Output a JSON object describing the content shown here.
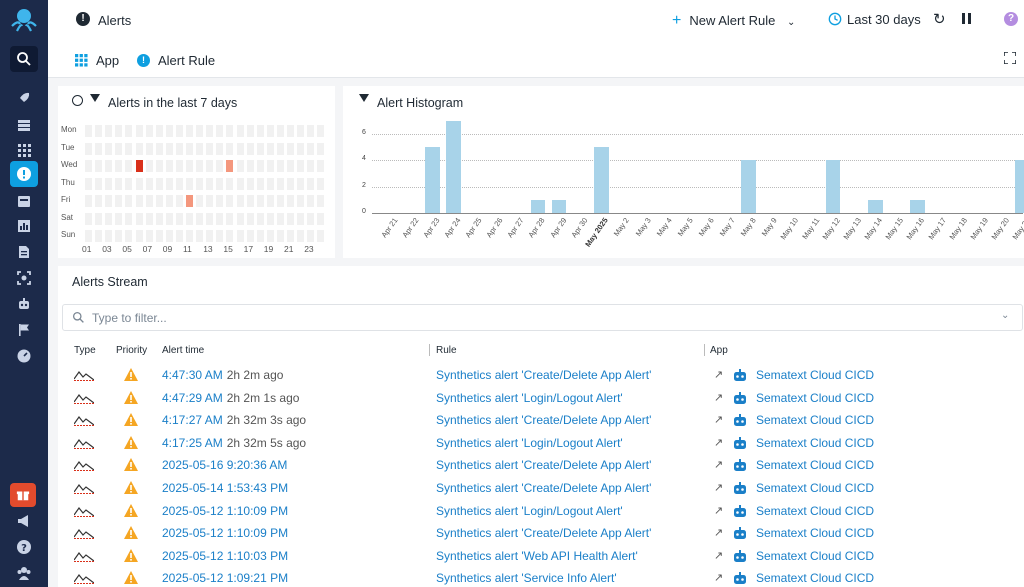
{
  "header": {
    "page_title": "Alerts",
    "new_alert_rule": "New Alert Rule",
    "time_range": "Last 30 days"
  },
  "filters_bar": {
    "app_label": "App",
    "rule_label": "Alert Rule"
  },
  "heatmap": {
    "title": "Alerts in the last 7 days",
    "days": [
      "Mon",
      "Tue",
      "Wed",
      "Thu",
      "Fri",
      "Sat",
      "Sun"
    ],
    "hours": [
      "01",
      "03",
      "05",
      "07",
      "09",
      "11",
      "13",
      "15",
      "17",
      "19",
      "21",
      "23"
    ],
    "hot_cells": [
      {
        "day": "Wed",
        "hour": 5,
        "level": "high"
      },
      {
        "day": "Wed",
        "hour": 14,
        "level": "medium"
      },
      {
        "day": "Fri",
        "hour": 10,
        "level": "medium"
      }
    ]
  },
  "chart_data": {
    "type": "bar",
    "title": "Alert Histogram",
    "xlabel": "",
    "ylabel": "",
    "ylim": [
      0,
      7
    ],
    "yticks": [
      0,
      2,
      4,
      6
    ],
    "categories": [
      "Apr 21",
      "Apr 22",
      "Apr 23",
      "Apr 24",
      "Apr 25",
      "Apr 26",
      "Apr 27",
      "Apr 28",
      "Apr 29",
      "Apr 30",
      "May 2025",
      "May 2",
      "May 3",
      "May 4",
      "May 5",
      "May 6",
      "May 7",
      "May 8",
      "May 9",
      "May 10",
      "May 11",
      "May 12",
      "May 13",
      "May 14",
      "May 15",
      "May 16",
      "May 17",
      "May 18",
      "May 19",
      "May 20",
      "May 21"
    ],
    "values": [
      0,
      0,
      5,
      7,
      0,
      0,
      0,
      1,
      1,
      0,
      5,
      0,
      0,
      0,
      0,
      0,
      0,
      4,
      0,
      0,
      0,
      4,
      0,
      1,
      0,
      1,
      0,
      0,
      0,
      0,
      4
    ],
    "bold_label": "May 2025"
  },
  "stream": {
    "title": "Alerts Stream",
    "filter_placeholder": "Type to filter...",
    "columns": {
      "type": "Type",
      "priority": "Priority",
      "time": "Alert time",
      "rule": "Rule",
      "app": "App"
    },
    "rows": [
      {
        "time": "4:47:30 AM",
        "ago": "2h 2m ago",
        "rule": "Synthetics alert 'Create/Delete App Alert'",
        "app": "Sematext Cloud CICD"
      },
      {
        "time": "4:47:29 AM",
        "ago": "2h 2m 1s ago",
        "rule": "Synthetics alert 'Login/Logout Alert'",
        "app": "Sematext Cloud CICD"
      },
      {
        "time": "4:17:27 AM",
        "ago": "2h 32m 3s ago",
        "rule": "Synthetics alert 'Create/Delete App Alert'",
        "app": "Sematext Cloud CICD"
      },
      {
        "time": "4:17:25 AM",
        "ago": "2h 32m 5s ago",
        "rule": "Synthetics alert 'Login/Logout Alert'",
        "app": "Sematext Cloud CICD"
      },
      {
        "time": "2025-05-16 9:20:36 AM",
        "ago": "",
        "rule": "Synthetics alert 'Create/Delete App Alert'",
        "app": "Sematext Cloud CICD"
      },
      {
        "time": "2025-05-14 1:53:43 PM",
        "ago": "",
        "rule": "Synthetics alert 'Create/Delete App Alert'",
        "app": "Sematext Cloud CICD"
      },
      {
        "time": "2025-05-12 1:10:09 PM",
        "ago": "",
        "rule": "Synthetics alert 'Login/Logout Alert'",
        "app": "Sematext Cloud CICD"
      },
      {
        "time": "2025-05-12 1:10:09 PM",
        "ago": "",
        "rule": "Synthetics alert 'Create/Delete App Alert'",
        "app": "Sematext Cloud CICD"
      },
      {
        "time": "2025-05-12 1:10:03 PM",
        "ago": "",
        "rule": "Synthetics alert 'Web API Health Alert'",
        "app": "Sematext Cloud CICD"
      },
      {
        "time": "2025-05-12 1:09:21 PM",
        "ago": "",
        "rule": "Synthetics alert 'Service Info Alert'",
        "app": "Sematext Cloud CICD"
      }
    ]
  },
  "colors": {
    "sidebar": "#1c2a4a",
    "accent": "#0e9fe0",
    "bar": "#a8d3e9",
    "heat_high": "#d9301a",
    "heat_medium": "#f4977d",
    "warning": "#f5a623",
    "link": "#1a7fc8"
  },
  "icons": [
    "octopus-logo",
    "search-icon",
    "rocket-icon",
    "stack-icon",
    "grid-icon",
    "alert-icon",
    "inbox-icon",
    "chart-icon",
    "document-icon",
    "scan-icon",
    "robot-icon",
    "flag-icon",
    "dashboard-icon",
    "gift-icon",
    "megaphone-icon",
    "help-icon",
    "team-icon"
  ]
}
